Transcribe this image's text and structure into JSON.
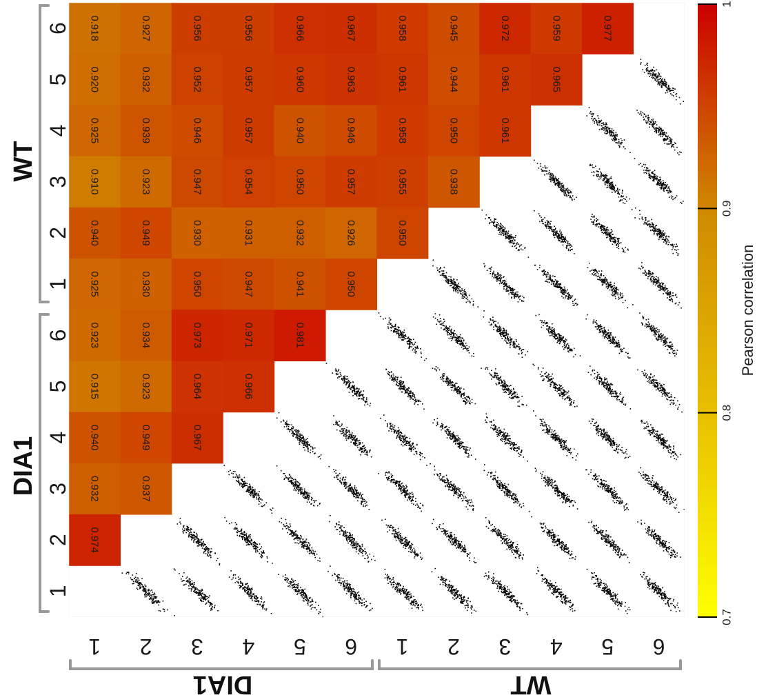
{
  "chart_data": {
    "type": "heatmap",
    "description_free": true,
    "samples": [
      {
        "group": "DIA1",
        "rep": "1"
      },
      {
        "group": "DIA1",
        "rep": "2"
      },
      {
        "group": "DIA1",
        "rep": "3"
      },
      {
        "group": "DIA1",
        "rep": "4"
      },
      {
        "group": "DIA1",
        "rep": "5"
      },
      {
        "group": "DIA1",
        "rep": "6"
      },
      {
        "group": "WT",
        "rep": "1"
      },
      {
        "group": "WT",
        "rep": "2"
      },
      {
        "group": "WT",
        "rep": "3"
      },
      {
        "group": "WT",
        "rep": "4"
      },
      {
        "group": "WT",
        "rep": "5"
      },
      {
        "group": "WT",
        "rep": "6"
      }
    ],
    "groups": [
      "DIA1",
      "WT"
    ],
    "correlations": [
      [
        null,
        0.974,
        0.932,
        0.94,
        0.915,
        0.923,
        0.925,
        0.94,
        0.91,
        0.925,
        0.92,
        0.918
      ],
      [
        0.974,
        null,
        0.937,
        0.949,
        0.923,
        0.934,
        0.93,
        0.949,
        0.923,
        0.939,
        0.932,
        0.927
      ],
      [
        0.932,
        0.937,
        null,
        0.967,
        0.964,
        0.973,
        0.95,
        0.93,
        0.947,
        0.946,
        0.952,
        0.956
      ],
      [
        0.94,
        0.949,
        0.967,
        null,
        0.966,
        0.971,
        0.947,
        0.931,
        0.954,
        0.957,
        0.957,
        0.956
      ],
      [
        0.915,
        0.923,
        0.964,
        0.966,
        null,
        0.981,
        0.941,
        0.932,
        0.95,
        0.94,
        0.96,
        0.966
      ],
      [
        0.923,
        0.934,
        0.973,
        0.971,
        0.981,
        null,
        0.95,
        0.926,
        0.957,
        0.946,
        0.963,
        0.967
      ],
      [
        0.925,
        0.93,
        0.95,
        0.947,
        0.941,
        0.95,
        null,
        0.95,
        0.955,
        0.958,
        0.961,
        0.958
      ],
      [
        0.94,
        0.949,
        0.93,
        0.931,
        0.932,
        0.926,
        0.95,
        null,
        0.938,
        0.95,
        0.944,
        0.945
      ],
      [
        0.91,
        0.923,
        0.947,
        0.954,
        0.95,
        0.957,
        0.955,
        0.938,
        null,
        0.961,
        0.961,
        0.972
      ],
      [
        0.925,
        0.939,
        0.946,
        0.957,
        0.94,
        0.946,
        0.958,
        0.95,
        0.961,
        null,
        0.965,
        0.959
      ],
      [
        0.92,
        0.932,
        0.952,
        0.957,
        0.96,
        0.963,
        0.961,
        0.944,
        0.961,
        0.965,
        null,
        0.977
      ],
      [
        0.918,
        0.927,
        0.956,
        0.956,
        0.966,
        0.967,
        0.958,
        0.945,
        0.972,
        0.959,
        0.977,
        null
      ]
    ],
    "upper_triangle": "correlation values (heatmap)",
    "lower_triangle": "pairwise scatter plots",
    "colorbar": {
      "title": "Pearson correlation",
      "range": [
        0.7,
        1.0
      ],
      "ticks": [
        "0.7",
        "0.8",
        "0.9",
        "1"
      ],
      "colors": [
        "#ffff00",
        "#e8c000",
        "#d08a00",
        "#cc0000"
      ]
    }
  }
}
